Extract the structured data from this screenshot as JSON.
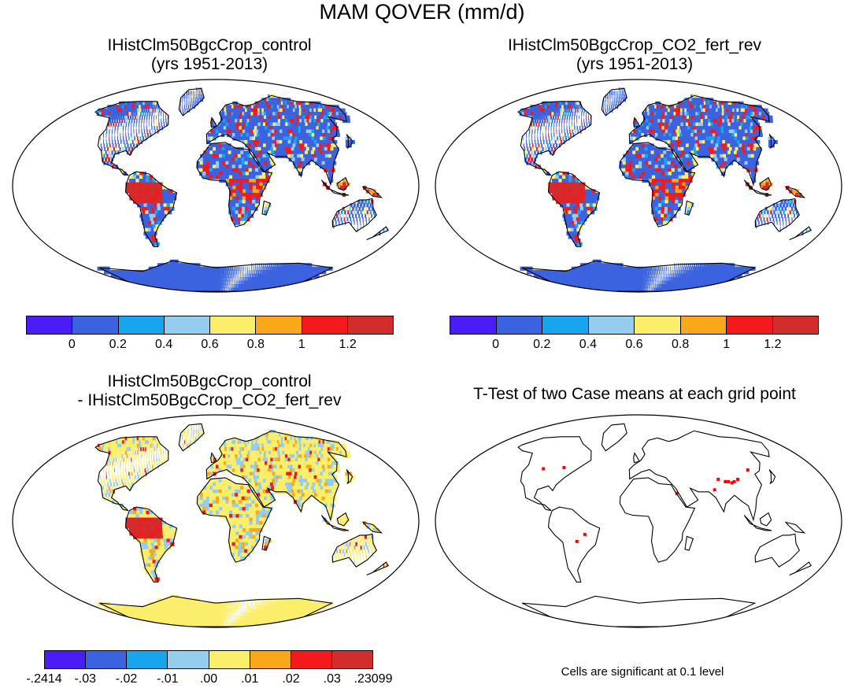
{
  "main_title": "MAM QOVER (mm/d)",
  "panels": {
    "top_left": {
      "title_line1": "IHistClm50BgcCrop_control",
      "title_line2": "(yrs 1951-2013)"
    },
    "top_right": {
      "title_line1": "IHistClm50BgcCrop_CO2_fert_rev",
      "title_line2": "(yrs 1951-2013)"
    },
    "bottom_left": {
      "title_line1": "IHistClm50BgcCrop_control",
      "title_line2": "- IHistClm50BgcCrop_CO2_fert_rev"
    },
    "bottom_right": {
      "title_line1": "T-Test of two Case means at each grid point",
      "footnote": "Cells are significant at 0.1 level"
    }
  },
  "colorbars": {
    "absolute": {
      "colors": [
        "#4a1cf6",
        "#3c63df",
        "#17a5ee",
        "#94cdee",
        "#fbee6a",
        "#f9a71b",
        "#f4191c",
        "#d22d2d"
      ],
      "labels": [
        "0",
        "0.2",
        "0.4",
        "0.6",
        "0.8",
        "1",
        "1.2"
      ]
    },
    "difference": {
      "colors": [
        "#4a1cf6",
        "#3c63df",
        "#17a5ee",
        "#94cdee",
        "#fbee6a",
        "#f9a71b",
        "#f4191c",
        "#d22d2d"
      ],
      "labels": [
        "-.2414",
        "-.03",
        "-.02",
        "-.01",
        ".00",
        ".01",
        ".02",
        ".03",
        ".23099"
      ]
    }
  },
  "map_colors": {
    "land_low": "#3c63df",
    "land_diff": "#fbee6a",
    "significant": "#ff0000"
  }
}
